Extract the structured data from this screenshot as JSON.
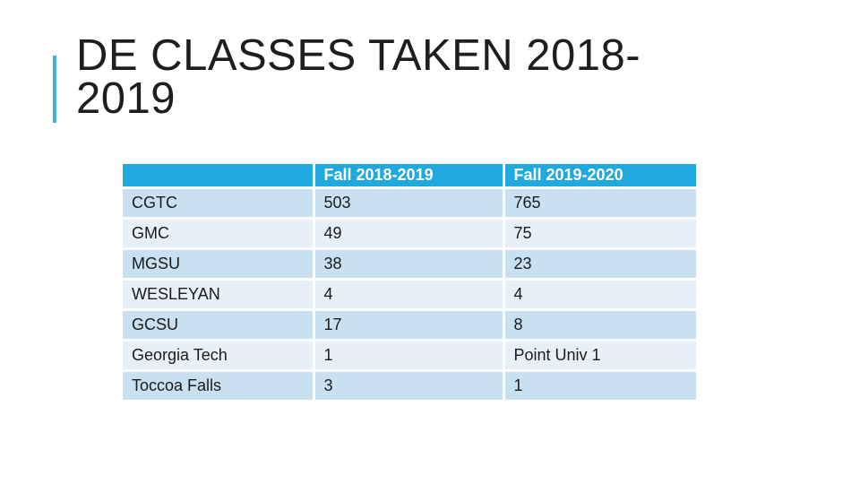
{
  "slide": {
    "title": "DE CLASSES TAKEN 2018-2019",
    "background_color": "#FFFFFF",
    "title_color": "#1E1E1E",
    "accent_bar_color": "#41AFD6"
  },
  "table": {
    "header_bg_color": "#1FA9DF",
    "header_text_color": "#FFFFFF",
    "band_color_dark": "#C9E0F1",
    "band_color_light": "#E7F0F8",
    "headers": [
      "",
      "Fall 2018-2019",
      "Fall 2019-2020"
    ],
    "rows": [
      {
        "label": "CGTC",
        "fall_2018_2019": "503",
        "fall_2019_2020": "765"
      },
      {
        "label": "GMC",
        "fall_2018_2019": "49",
        "fall_2019_2020": "75"
      },
      {
        "label": "MGSU",
        "fall_2018_2019": "38",
        "fall_2019_2020": "23"
      },
      {
        "label": "WESLEYAN",
        "fall_2018_2019": "4",
        "fall_2019_2020": "4"
      },
      {
        "label": "GCSU",
        "fall_2018_2019": "17",
        "fall_2019_2020": "8"
      },
      {
        "label": "Georgia Tech",
        "fall_2018_2019": "1",
        "fall_2019_2020": "Point Univ 1"
      },
      {
        "label": "Toccoa Falls",
        "fall_2018_2019": "3",
        "fall_2019_2020": "1"
      }
    ]
  }
}
